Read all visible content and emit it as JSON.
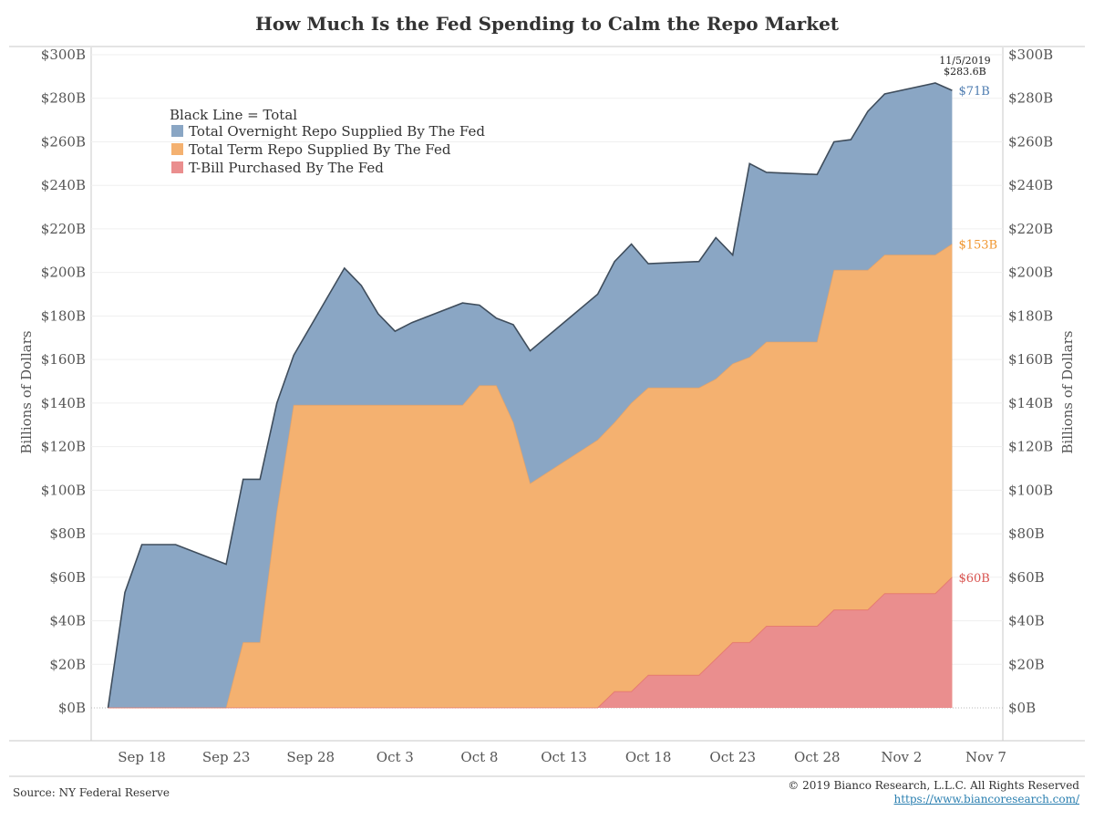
{
  "chart_data": {
    "type": "area",
    "title": "How Much Is the Fed Spending to Calm the Repo Market",
    "ylabel": "Billions of Dollars",
    "ylabel_right": "Billions of Dollars",
    "ylim": [
      0,
      300
    ],
    "y_ticks": [
      "$0B",
      "$20B",
      "$40B",
      "$60B",
      "$80B",
      "$100B",
      "$120B",
      "$140B",
      "$160B",
      "$180B",
      "$200B",
      "$220B",
      "$240B",
      "$260B",
      "$280B",
      "$300B"
    ],
    "x_range": [
      "2019-09-15",
      "2019-11-08"
    ],
    "x_ticks": [
      {
        "date": "2019-09-18",
        "label": "Sep 18"
      },
      {
        "date": "2019-09-23",
        "label": "Sep 23"
      },
      {
        "date": "2019-09-28",
        "label": "Sep 28"
      },
      {
        "date": "2019-10-03",
        "label": "Oct 3"
      },
      {
        "date": "2019-10-08",
        "label": "Oct 8"
      },
      {
        "date": "2019-10-13",
        "label": "Oct 13"
      },
      {
        "date": "2019-10-18",
        "label": "Oct 18"
      },
      {
        "date": "2019-10-23",
        "label": "Oct 23"
      },
      {
        "date": "2019-10-28",
        "label": "Oct 28"
      },
      {
        "date": "2019-11-02",
        "label": "Nov 2"
      },
      {
        "date": "2019-11-07",
        "label": "Nov 7"
      }
    ],
    "legend": {
      "heading": "Black Line = Total",
      "items": [
        {
          "label": "Total Overnight Repo Supplied By The Fed",
          "color": "#8aa6c4"
        },
        {
          "label": "Total Term Repo Supplied By The Fed",
          "color": "#f4b170"
        },
        {
          "label": "T-Bill Purchased By The Fed",
          "color": "#ea8e8e"
        }
      ]
    },
    "series": [
      {
        "name": "T-Bill Purchased By The Fed",
        "color": "#ea8e8e",
        "points": [
          [
            "2019-09-16",
            0
          ],
          [
            "2019-10-15",
            0
          ],
          [
            "2019-10-16",
            7.5
          ],
          [
            "2019-10-17",
            7.5
          ],
          [
            "2019-10-18",
            15
          ],
          [
            "2019-10-21",
            15
          ],
          [
            "2019-10-22",
            22.5
          ],
          [
            "2019-10-23",
            30
          ],
          [
            "2019-10-24",
            30
          ],
          [
            "2019-10-25",
            37.5
          ],
          [
            "2019-10-28",
            37.5
          ],
          [
            "2019-10-29",
            45
          ],
          [
            "2019-10-31",
            45
          ],
          [
            "2019-11-01",
            52.5
          ],
          [
            "2019-11-04",
            52.5
          ],
          [
            "2019-11-05",
            60
          ]
        ]
      },
      {
        "name": "Total Term Repo Supplied By The Fed",
        "color": "#f4b170",
        "points": [
          [
            "2019-09-16",
            0
          ],
          [
            "2019-09-23",
            0
          ],
          [
            "2019-09-24",
            30
          ],
          [
            "2019-09-25",
            30
          ],
          [
            "2019-09-26",
            90
          ],
          [
            "2019-09-27",
            139
          ],
          [
            "2019-10-07",
            139
          ],
          [
            "2019-10-08",
            148
          ],
          [
            "2019-10-09",
            148
          ],
          [
            "2019-10-10",
            131
          ],
          [
            "2019-10-11",
            103
          ],
          [
            "2019-10-15",
            123
          ],
          [
            "2019-10-16",
            131
          ],
          [
            "2019-10-17",
            140
          ],
          [
            "2019-10-18",
            147
          ],
          [
            "2019-10-21",
            147
          ],
          [
            "2019-10-22",
            151
          ],
          [
            "2019-10-23",
            158
          ],
          [
            "2019-10-24",
            161
          ],
          [
            "2019-10-25",
            168
          ],
          [
            "2019-10-28",
            168
          ],
          [
            "2019-10-29",
            201
          ],
          [
            "2019-10-31",
            201
          ],
          [
            "2019-11-01",
            208
          ],
          [
            "2019-11-04",
            208
          ],
          [
            "2019-11-05",
            213
          ]
        ]
      },
      {
        "name": "Total Overnight Repo Supplied By The Fed",
        "color": "#8aa6c4",
        "points": [
          [
            "2019-09-16",
            0
          ],
          [
            "2019-09-17",
            53
          ],
          [
            "2019-09-18",
            75
          ],
          [
            "2019-09-19",
            75
          ],
          [
            "2019-09-20",
            75
          ],
          [
            "2019-09-23",
            66
          ],
          [
            "2019-09-24",
            105
          ],
          [
            "2019-09-25",
            105
          ],
          [
            "2019-09-26",
            140
          ],
          [
            "2019-09-27",
            162
          ],
          [
            "2019-09-30",
            202
          ],
          [
            "2019-10-01",
            194
          ],
          [
            "2019-10-02",
            181
          ],
          [
            "2019-10-03",
            173
          ],
          [
            "2019-10-04",
            177
          ],
          [
            "2019-10-07",
            186
          ],
          [
            "2019-10-08",
            185
          ],
          [
            "2019-10-09",
            179
          ],
          [
            "2019-10-10",
            176
          ],
          [
            "2019-10-11",
            164
          ],
          [
            "2019-10-15",
            190
          ],
          [
            "2019-10-16",
            205
          ],
          [
            "2019-10-17",
            213
          ],
          [
            "2019-10-18",
            204
          ],
          [
            "2019-10-21",
            205
          ],
          [
            "2019-10-22",
            216
          ],
          [
            "2019-10-23",
            208
          ],
          [
            "2019-10-24",
            250
          ],
          [
            "2019-10-25",
            246
          ],
          [
            "2019-10-28",
            245
          ],
          [
            "2019-10-29",
            260
          ],
          [
            "2019-10-30",
            261
          ],
          [
            "2019-10-31",
            274
          ],
          [
            "2019-11-01",
            282
          ],
          [
            "2019-11-04",
            287
          ],
          [
            "2019-11-05",
            283.6
          ]
        ]
      }
    ],
    "end_labels": [
      {
        "text": "$71B",
        "y": 283.6,
        "color": "#4e7cb0"
      },
      {
        "text": "$153B",
        "y": 213,
        "color": "#f0962f"
      },
      {
        "text": "$60B",
        "y": 60,
        "color": "#d9534f"
      }
    ],
    "callout": {
      "date": "11/5/2019",
      "value": "$283.6B"
    },
    "grid": true
  },
  "footer": {
    "source": "Source: NY Federal Reserve",
    "copyright": "© 2019 Bianco Research, L.L.C. All Rights Reserved",
    "website": "https://www.biancoresearch.com/"
  }
}
